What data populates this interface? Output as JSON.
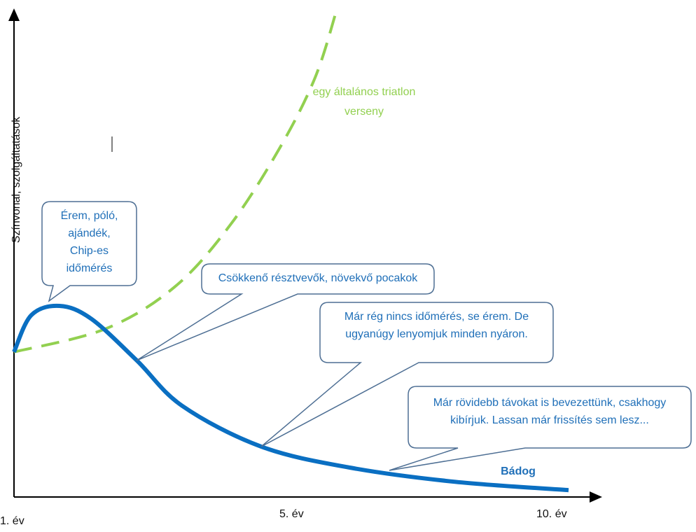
{
  "chart_data": {
    "type": "line",
    "title": "",
    "xlabel": "",
    "ylabel": "Színvonal, szolgáltatások",
    "x_ticks": [
      "1. év",
      "5. év",
      "10. év"
    ],
    "xlim": [
      1,
      10
    ],
    "ylim": [
      0,
      100
    ],
    "series": [
      {
        "name": "Bádog",
        "color": "#0a6fc2",
        "style": "solid",
        "x": [
          1,
          1.28,
          1.74,
          2.25,
          2.99,
          3.73,
          5.01,
          6.45,
          8.16,
          10
        ],
        "y": [
          29.6,
          37.1,
          39,
          36.4,
          27.9,
          18.6,
          10.3,
          6,
          3.1,
          1.4
        ]
      },
      {
        "name": "egy általános triatlon verseny",
        "color": "#92d050",
        "style": "dashed",
        "x": [
          1,
          2.48,
          3.61,
          4.52,
          5.32,
          5.89,
          6.25
        ],
        "y": [
          29.6,
          34.3,
          42.9,
          55.7,
          71.4,
          85.7,
          100
        ]
      }
    ],
    "labels": {
      "green_line": [
        "egy általános triatlon",
        "verseny"
      ],
      "blue_line": "Bádog"
    },
    "callouts": [
      [
        "Érem, póló,",
        "ajándék,",
        "Chip-es",
        "időmérés"
      ],
      [
        "Csökkenő résztvevők, növekvő pocakok"
      ],
      [
        "Már rég nincs időmérés, se érem. De",
        "ugyanúgy lenyomjuk minden nyáron."
      ],
      [
        "Már rövidebb távokat is bevezettünk, csakhogy",
        "kibírjuk. Lassan már frissítés sem lesz..."
      ]
    ]
  }
}
